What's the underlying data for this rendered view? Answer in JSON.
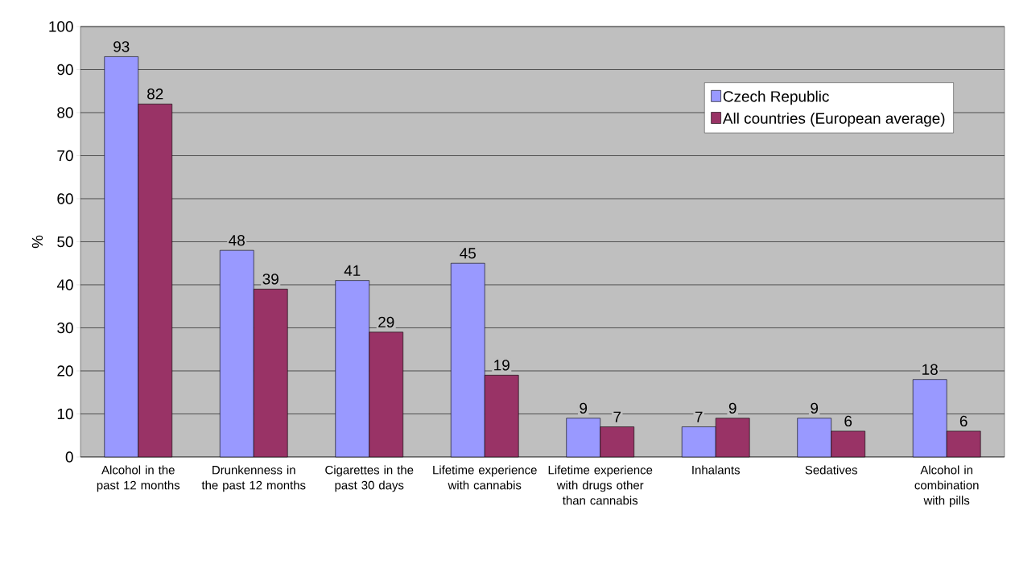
{
  "chart_data": {
    "type": "bar",
    "ylabel": "%",
    "categories": [
      "Alcohol in the past 12 months",
      "Drunkenness in the past 12 months",
      "Cigarettes in the past 30 days",
      "Lifetime experience with cannabis",
      "Lifetime experience with drugs other than cannabis",
      "Inhalants",
      "Sedatives",
      "Alcohol in combination with pills"
    ],
    "series": [
      {
        "name": "Czech Republic",
        "color": "#9999ff",
        "values": [
          93,
          48,
          41,
          45,
          9,
          7,
          9,
          18
        ]
      },
      {
        "name": "All countries (European average)",
        "color": "#993366",
        "values": [
          82,
          39,
          29,
          19,
          7,
          9,
          6,
          6
        ]
      }
    ],
    "ylim": [
      0,
      100
    ],
    "yticks": [
      0,
      10,
      20,
      30,
      40,
      50,
      60,
      70,
      80,
      90,
      100
    ],
    "grid": "y",
    "legend": "top right",
    "data_labels": true
  }
}
